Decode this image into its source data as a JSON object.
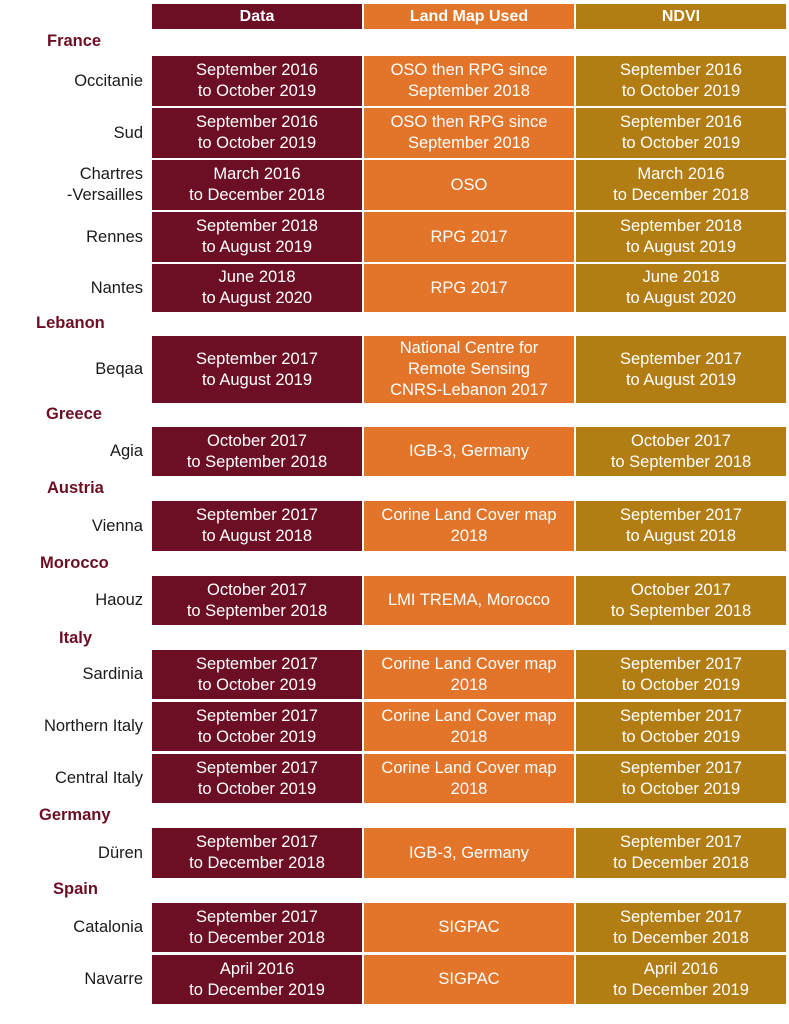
{
  "headers": {
    "data": "Data",
    "land": "Land Map Used",
    "ndvi": "NDVI"
  },
  "colors": {
    "data": "#6d0f24",
    "land": "#e27529",
    "ndvi": "#b27d12"
  },
  "countries": {
    "france": "France",
    "lebanon": "Lebanon",
    "greece": "Greece",
    "austria": "Austria",
    "morocco": "Morocco",
    "italy": "Italy",
    "germany": "Germany",
    "spain": "Spain"
  },
  "rows": [
    {
      "region": "Occitanie",
      "data": "September 2016\nto October 2019",
      "land": "OSO then RPG since\nSeptember 2018",
      "ndvi": "September 2016\nto October 2019"
    },
    {
      "region": "Sud",
      "data": "September 2016\nto October 2019",
      "land": "OSO then RPG since\nSeptember 2018",
      "ndvi": "September 2016\nto October 2019"
    },
    {
      "region": "Chartres\n-Versailles",
      "data": "March 2016\nto December 2018",
      "land": "OSO",
      "ndvi": "March 2016\nto December 2018"
    },
    {
      "region": "Rennes",
      "data": "September 2018\nto August 2019",
      "land": "RPG 2017",
      "ndvi": "September 2018\nto August 2019"
    },
    {
      "region": "Nantes",
      "data": "June 2018\nto August 2020",
      "land": "RPG 2017",
      "ndvi": "June 2018\nto August 2020"
    },
    {
      "region": "Beqaa",
      "data": "September 2017\nto August 2019",
      "land": "National Centre for\nRemote Sensing\nCNRS-Lebanon 2017",
      "ndvi": "September 2017\nto August 2019"
    },
    {
      "region": "Agia",
      "data": "October 2017\nto September 2018",
      "land": "IGB-3, Germany",
      "ndvi": "October 2017\nto September 2018"
    },
    {
      "region": "Vienna",
      "data": "September 2017\nto August 2018",
      "land": "Corine Land Cover map\n2018",
      "ndvi": "September 2017\nto August 2018"
    },
    {
      "region": "Haouz",
      "data": "October 2017\nto September 2018",
      "land": "LMI TREMA, Morocco",
      "ndvi": "October 2017\nto September 2018"
    },
    {
      "region": "Sardinia",
      "data": "September 2017\nto October 2019",
      "land": "Corine Land Cover map\n2018",
      "ndvi": "September 2017\nto October 2019"
    },
    {
      "region": "Northern Italy",
      "data": "September 2017\nto October 2019",
      "land": "Corine Land Cover map\n2018",
      "ndvi": "September 2017\nto October 2019"
    },
    {
      "region": "Central Italy",
      "data": "September 2017\nto October 2019",
      "land": "Corine Land Cover map\n2018",
      "ndvi": "September 2017\nto October 2019"
    },
    {
      "region": "Düren",
      "data": "September 2017\nto December 2018",
      "land": "IGB-3, Germany",
      "ndvi": "September 2017\nto December 2018"
    },
    {
      "region": "Catalonia",
      "data": "September 2017\nto December 2018",
      "land": "SIGPAC",
      "ndvi": "September 2017\nto December 2018"
    },
    {
      "region": "Navarre",
      "data": "April 2016\nto December 2019",
      "land": "SIGPAC",
      "ndvi": "April 2016\nto December 2019"
    }
  ]
}
